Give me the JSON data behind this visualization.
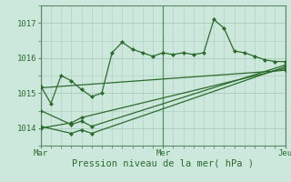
{
  "xlabel": "Pression niveau de la mer( hPa )",
  "bg_color": "#cce8dc",
  "grid_color": "#aaccbb",
  "line_color": "#2d6b2d",
  "marker_color": "#2d6b2d",
  "ylim": [
    1013.5,
    1017.5
  ],
  "yticks": [
    1014,
    1015,
    1016,
    1017
  ],
  "xtick_labels": [
    "Mar",
    "Mer",
    "Jeu"
  ],
  "xtick_pos": [
    0,
    24,
    48
  ],
  "total_hours": 48,
  "series": [
    [
      0,
      1015.2,
      2,
      1014.7,
      4,
      1015.5,
      6,
      1015.35,
      8,
      1015.1,
      10,
      1014.9,
      12,
      1015.0,
      14,
      1016.15,
      16,
      1016.45,
      18,
      1016.25,
      20,
      1016.15,
      22,
      1016.05,
      24,
      1016.15,
      26,
      1016.1,
      28,
      1016.15,
      30,
      1016.1,
      32,
      1016.15,
      34,
      1017.1,
      36,
      1016.85,
      38,
      1016.2,
      40,
      1016.15,
      42,
      1016.05,
      44,
      1015.95,
      46,
      1015.9,
      48,
      1015.9
    ],
    [
      0,
      1014.5,
      6,
      1014.1,
      8,
      1014.2,
      10,
      1014.05,
      48,
      1015.8
    ],
    [
      0,
      1014.05,
      6,
      1013.85,
      8,
      1013.95,
      10,
      1013.85,
      48,
      1015.75
    ],
    [
      0,
      1014.0,
      6,
      1014.15,
      8,
      1014.3,
      48,
      1015.7
    ],
    [
      0,
      1015.15,
      48,
      1015.65
    ]
  ]
}
